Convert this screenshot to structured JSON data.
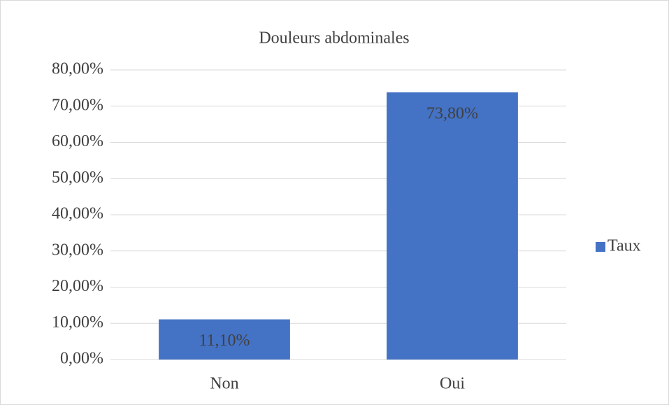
{
  "chart_data": {
    "type": "bar",
    "title": "Douleurs abdominales",
    "categories": [
      "Non",
      "Oui"
    ],
    "series": [
      {
        "name": "Taux",
        "color": "#4472c4",
        "values": [
          11.1,
          73.8
        ],
        "value_labels": [
          "11,10%",
          "73,80%"
        ]
      }
    ],
    "ylim": [
      0,
      80
    ],
    "yticks": [
      {
        "value": 0,
        "label": "0,00%"
      },
      {
        "value": 10,
        "label": "10,00%"
      },
      {
        "value": 20,
        "label": "20,00%"
      },
      {
        "value": 30,
        "label": "30,00%"
      },
      {
        "value": 40,
        "label": "40,00%"
      },
      {
        "value": 50,
        "label": "50,00%"
      },
      {
        "value": 60,
        "label": "60,00%"
      },
      {
        "value": 70,
        "label": "70,00%"
      },
      {
        "value": 80,
        "label": "80,00%"
      }
    ],
    "grid": true,
    "legend": "right"
  }
}
